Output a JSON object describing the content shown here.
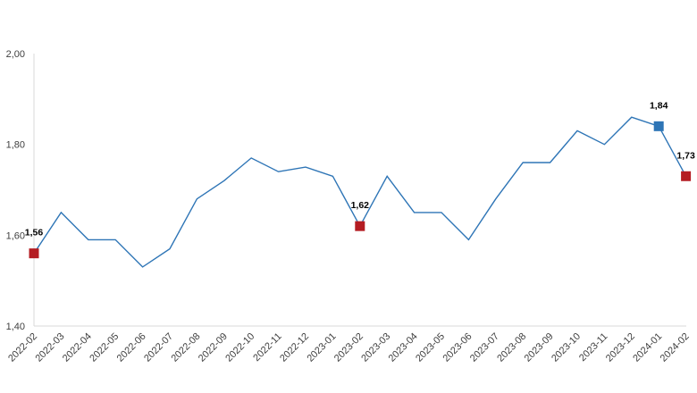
{
  "chart_data": {
    "type": "line",
    "title": "",
    "xlabel": "",
    "ylabel": "",
    "ylim": [
      1.4,
      2.0
    ],
    "y_ticks": [
      "1,40",
      "1,60",
      "1,80",
      "2,00"
    ],
    "grid": false,
    "x": [
      "2022-02",
      "2022-03",
      "2022-04",
      "2022-05",
      "2022-06",
      "2022-07",
      "2022-08",
      "2022-09",
      "2022-10",
      "2022-11",
      "2022-12",
      "2023-01",
      "2023-02",
      "2023-03",
      "2023-04",
      "2023-05",
      "2023-06",
      "2023-07",
      "2023-08",
      "2023-09",
      "2023-10",
      "2023-11",
      "2023-12",
      "2024-01",
      "2024-02"
    ],
    "series": [
      {
        "values": [
          1.56,
          1.65,
          1.59,
          1.59,
          1.53,
          1.57,
          1.68,
          1.72,
          1.77,
          1.74,
          1.75,
          1.73,
          1.62,
          1.73,
          1.65,
          1.65,
          1.59,
          1.68,
          1.76,
          1.76,
          1.83,
          1.8,
          1.86,
          1.84,
          1.73
        ],
        "color": "#2e75b6"
      }
    ],
    "highlighted_points": [
      {
        "x": "2022-02",
        "value": 1.56,
        "label": "1,56",
        "color": "#b41c22"
      },
      {
        "x": "2023-02",
        "value": 1.62,
        "label": "1,62",
        "color": "#b41c22"
      },
      {
        "x": "2024-01",
        "value": 1.84,
        "label": "1,84",
        "color": "#2e75b6"
      },
      {
        "x": "2024-02",
        "value": 1.73,
        "label": "1,73",
        "color": "#b41c22"
      }
    ]
  }
}
